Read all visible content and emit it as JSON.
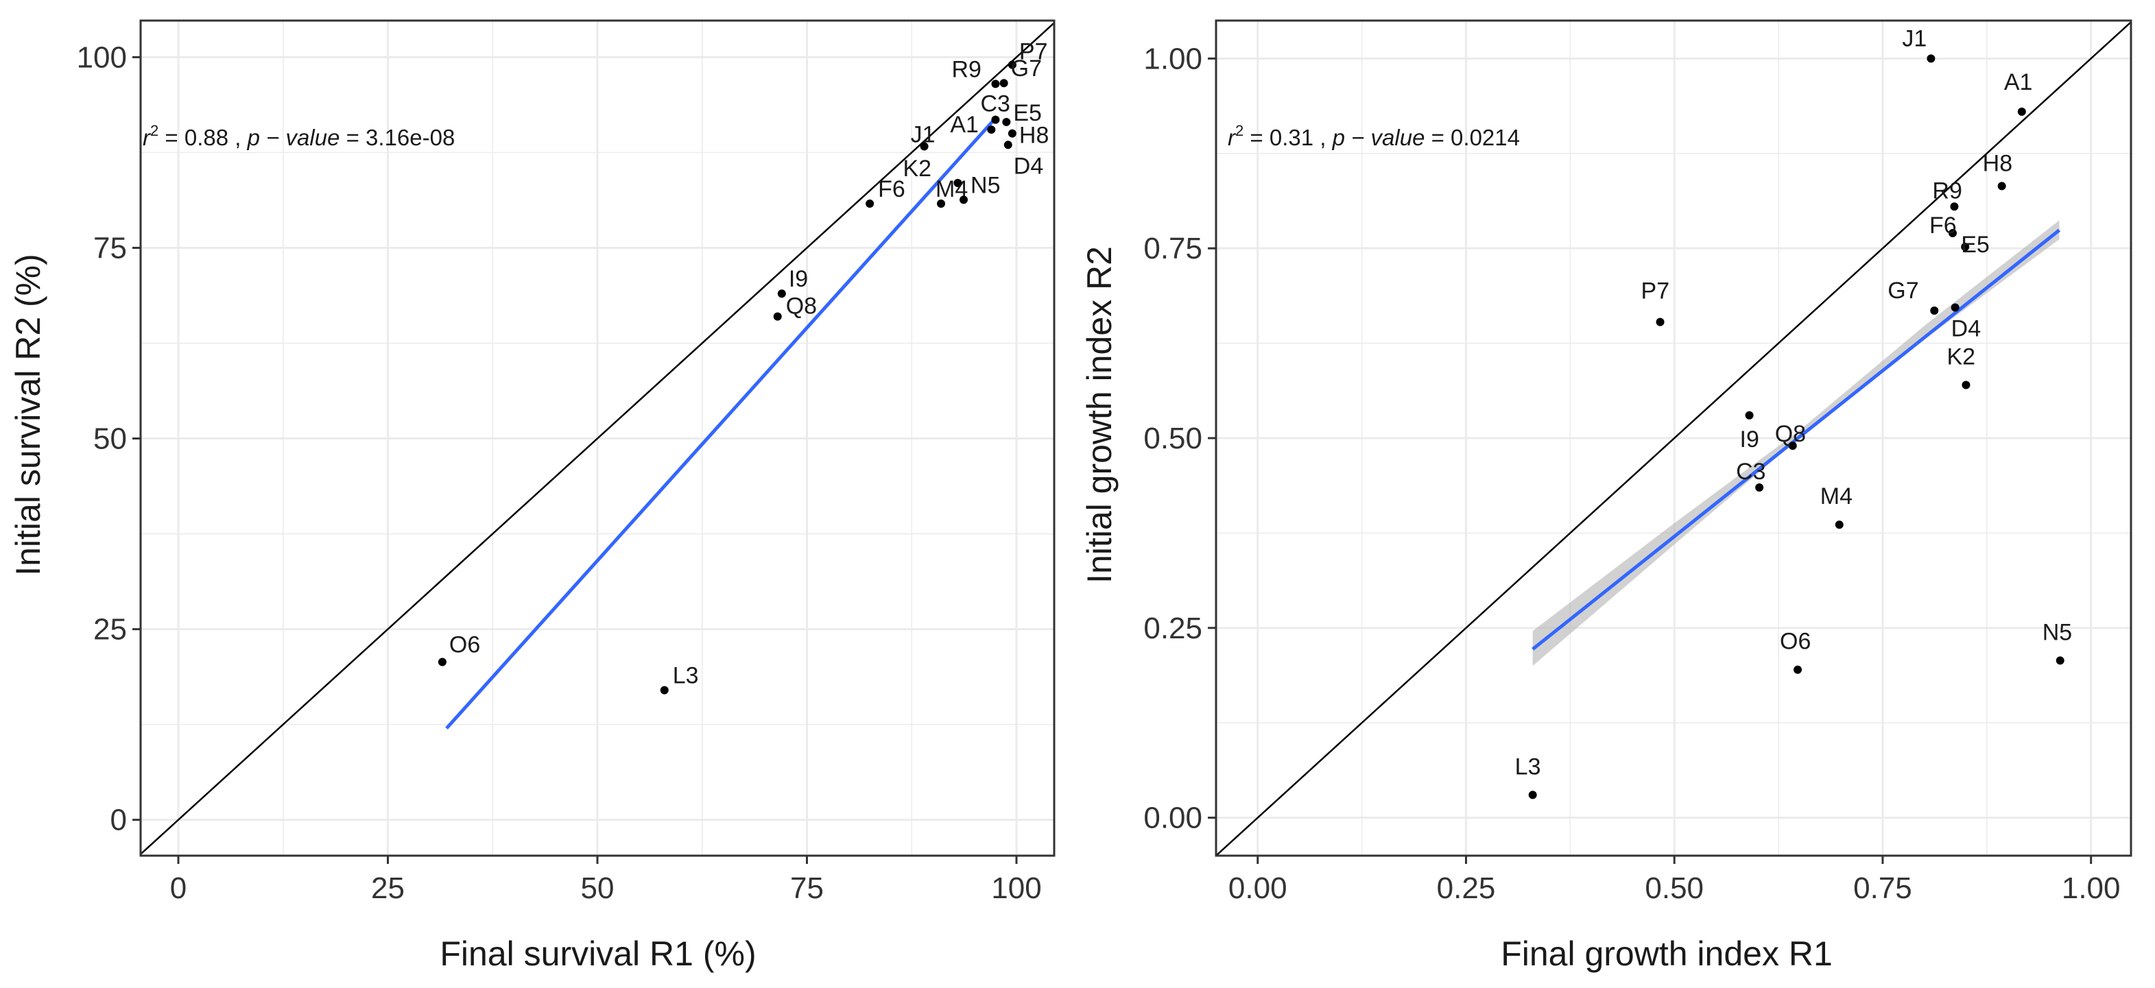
{
  "colors": {
    "grid": "#ebebeb",
    "panel_border": "#333333",
    "identity_line": "#000000",
    "fit_line": "#3366ff",
    "ci_band": "#b3b3b3",
    "points": "#000000",
    "text": "#1a1a1a"
  },
  "chart_data": [
    {
      "type": "scatter",
      "xlabel": "Final survival R1 (%)",
      "ylabel": "Initial survival R2 (%)",
      "xlim": [
        -4.5,
        104.5
      ],
      "ylim": [
        -4.7,
        104.8
      ],
      "x_ticks": [
        0,
        25,
        50,
        75,
        100
      ],
      "y_ticks": [
        0,
        25,
        50,
        75,
        100
      ],
      "x_tick_labels": [
        "0",
        "25",
        "50",
        "75",
        "100"
      ],
      "y_tick_labels": [
        "0",
        "25",
        "50",
        "75",
        "100"
      ],
      "grid": true,
      "identity_line": true,
      "annotation": {
        "r_symbol": "r",
        "r_exponent": "2",
        "r_value": " = 0.88 , ",
        "p_label": "p − value",
        "p_value": " = 3.16e-08"
      },
      "fit_line": {
        "x": [
          32.0,
          97.5
        ],
        "y": [
          12.0,
          92.0
        ]
      },
      "points": [
        {
          "label": "P7",
          "x": 99.5,
          "y": 99.0
        },
        {
          "label": "R9",
          "x": 97.5,
          "y": 96.5
        },
        {
          "label": "G7",
          "x": 98.5,
          "y": 96.6
        },
        {
          "label": "C3",
          "x": 97.5,
          "y": 91.8
        },
        {
          "label": "E5",
          "x": 98.8,
          "y": 91.5
        },
        {
          "label": "A1",
          "x": 97.0,
          "y": 90.5
        },
        {
          "label": "J1",
          "x": 89.0,
          "y": 88.3
        },
        {
          "label": "H8",
          "x": 99.5,
          "y": 90.0
        },
        {
          "label": "D4",
          "x": 99.0,
          "y": 88.5
        },
        {
          "label": "K2",
          "x": 93.0,
          "y": 83.5
        },
        {
          "label": "M4",
          "x": 91.0,
          "y": 80.8
        },
        {
          "label": "N5",
          "x": 93.7,
          "y": 81.3
        },
        {
          "label": "F6",
          "x": 82.5,
          "y": 80.8
        },
        {
          "label": "I9",
          "x": 72.0,
          "y": 69.0
        },
        {
          "label": "Q8",
          "x": 71.5,
          "y": 66.0
        },
        {
          "label": "O6",
          "x": 31.5,
          "y": 20.7
        },
        {
          "label": "L3",
          "x": 58.0,
          "y": 17.0
        }
      ]
    },
    {
      "type": "scatter",
      "xlabel": "Final growth index R1",
      "ylabel": "Initial growth index R2",
      "xlim": [
        -0.05,
        1.048
      ],
      "ylim": [
        -0.05,
        1.05
      ],
      "x_ticks": [
        0,
        0.25,
        0.5,
        0.75,
        1.0
      ],
      "y_ticks": [
        0,
        0.25,
        0.5,
        0.75,
        1.0
      ],
      "x_tick_labels": [
        "0.00",
        "0.25",
        "0.50",
        "0.75",
        "1.00"
      ],
      "y_tick_labels": [
        "0.00",
        "0.25",
        "0.50",
        "0.75",
        "1.00"
      ],
      "grid": true,
      "identity_line": true,
      "annotation": {
        "r_symbol": "r",
        "r_exponent": "2",
        "r_value": " = 0.31 , ",
        "p_label": "p − value",
        "p_value": " = 0.0214"
      },
      "fit_line": {
        "x": [
          0.33,
          0.962
        ],
        "y": [
          0.222,
          0.774
        ]
      },
      "fit_band": {
        "x": [
          0.33,
          0.5,
          0.65,
          0.8,
          0.962
        ],
        "lower": [
          0.2,
          0.36,
          0.5,
          0.63,
          0.762
        ],
        "upper": [
          0.246,
          0.388,
          0.51,
          0.648,
          0.787
        ]
      },
      "points": [
        {
          "label": "J1",
          "x": 0.808,
          "y": 1.0
        },
        {
          "label": "A1",
          "x": 0.917,
          "y": 0.93
        },
        {
          "label": "H8",
          "x": 0.893,
          "y": 0.832
        },
        {
          "label": "R9",
          "x": 0.836,
          "y": 0.805
        },
        {
          "label": "F6",
          "x": 0.834,
          "y": 0.77
        },
        {
          "label": "E5",
          "x": 0.849,
          "y": 0.752
        },
        {
          "label": "G7",
          "x": 0.812,
          "y": 0.668
        },
        {
          "label": "D4",
          "x": 0.837,
          "y": 0.672
        },
        {
          "label": "P7",
          "x": 0.483,
          "y": 0.653
        },
        {
          "label": "K2",
          "x": 0.85,
          "y": 0.57
        },
        {
          "label": "I9",
          "x": 0.59,
          "y": 0.53
        },
        {
          "label": "Q8",
          "x": 0.642,
          "y": 0.49
        },
        {
          "label": "C3",
          "x": 0.602,
          "y": 0.435
        },
        {
          "label": "M4",
          "x": 0.698,
          "y": 0.386
        },
        {
          "label": "O6",
          "x": 0.648,
          "y": 0.195
        },
        {
          "label": "N5",
          "x": 0.963,
          "y": 0.207
        },
        {
          "label": "L3",
          "x": 0.33,
          "y": 0.03
        }
      ]
    }
  ]
}
